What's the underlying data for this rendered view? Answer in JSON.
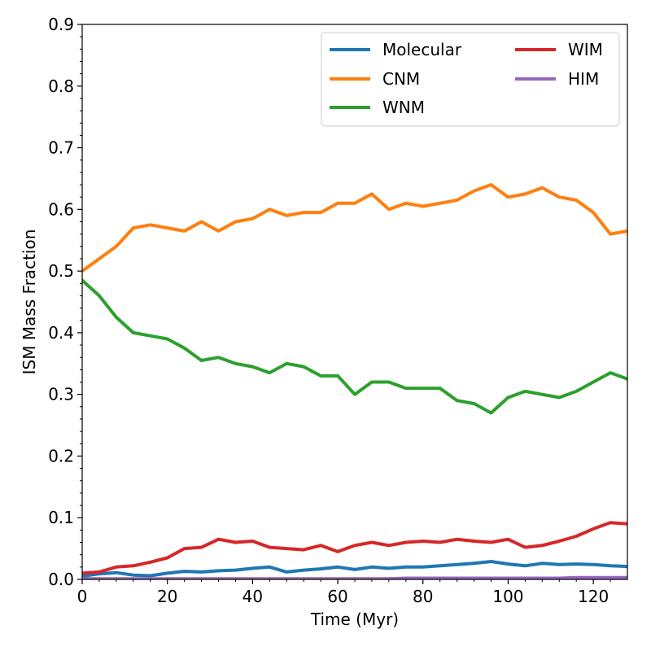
{
  "chart_data": {
    "type": "line",
    "title": "",
    "xlabel": "Time (Myr)",
    "ylabel": "ISM Mass Fraction",
    "xlim": [
      0,
      128
    ],
    "ylim": [
      0,
      0.9
    ],
    "xticks": [
      0,
      20,
      40,
      60,
      80,
      100,
      120
    ],
    "yticks": [
      0.0,
      0.1,
      0.2,
      0.3,
      0.4,
      0.5,
      0.6,
      0.7,
      0.8,
      0.9
    ],
    "grid": false,
    "legend_position": "top-right",
    "legend_columns": 2,
    "x": [
      0,
      4,
      8,
      12,
      16,
      20,
      24,
      28,
      32,
      36,
      40,
      44,
      48,
      52,
      56,
      60,
      64,
      68,
      72,
      76,
      80,
      84,
      88,
      92,
      96,
      100,
      104,
      108,
      112,
      116,
      120,
      124,
      128
    ],
    "series": [
      {
        "name": "Molecular",
        "color": "#1f77b4",
        "values": [
          0.005,
          0.009,
          0.011,
          0.007,
          0.006,
          0.01,
          0.013,
          0.012,
          0.014,
          0.015,
          0.018,
          0.02,
          0.012,
          0.015,
          0.017,
          0.02,
          0.016,
          0.02,
          0.018,
          0.02,
          0.02,
          0.022,
          0.024,
          0.026,
          0.029,
          0.025,
          0.022,
          0.026,
          0.024,
          0.025,
          0.024,
          0.022,
          0.021
        ]
      },
      {
        "name": "CNM",
        "color": "#ff7f0e",
        "values": [
          0.5,
          0.52,
          0.54,
          0.57,
          0.575,
          0.57,
          0.565,
          0.58,
          0.565,
          0.58,
          0.585,
          0.6,
          0.59,
          0.595,
          0.595,
          0.61,
          0.61,
          0.625,
          0.6,
          0.61,
          0.605,
          0.61,
          0.615,
          0.63,
          0.64,
          0.62,
          0.625,
          0.635,
          0.62,
          0.615,
          0.595,
          0.56,
          0.565
        ]
      },
      {
        "name": "WNM",
        "color": "#2ca02c",
        "values": [
          0.485,
          0.46,
          0.425,
          0.4,
          0.395,
          0.39,
          0.375,
          0.355,
          0.36,
          0.35,
          0.345,
          0.335,
          0.35,
          0.345,
          0.33,
          0.33,
          0.3,
          0.32,
          0.32,
          0.31,
          0.31,
          0.31,
          0.29,
          0.285,
          0.27,
          0.295,
          0.305,
          0.3,
          0.295,
          0.305,
          0.32,
          0.335,
          0.325
        ]
      },
      {
        "name": "WIM",
        "color": "#d62728",
        "values": [
          0.01,
          0.012,
          0.02,
          0.022,
          0.028,
          0.035,
          0.05,
          0.052,
          0.065,
          0.06,
          0.062,
          0.052,
          0.05,
          0.048,
          0.055,
          0.045,
          0.055,
          0.06,
          0.055,
          0.06,
          0.062,
          0.06,
          0.065,
          0.062,
          0.06,
          0.065,
          0.052,
          0.055,
          0.062,
          0.07,
          0.082,
          0.092,
          0.09
        ]
      },
      {
        "name": "HIM",
        "color": "#9467bd",
        "values": [
          0.001,
          0.001,
          0.001,
          0.001,
          0.001,
          0.001,
          0.001,
          0.001,
          0.001,
          0.001,
          0.001,
          0.001,
          0.001,
          0.001,
          0.001,
          0.001,
          0.001,
          0.001,
          0.001,
          0.002,
          0.002,
          0.002,
          0.002,
          0.002,
          0.002,
          0.002,
          0.002,
          0.002,
          0.002,
          0.003,
          0.003,
          0.003,
          0.003
        ]
      }
    ]
  }
}
